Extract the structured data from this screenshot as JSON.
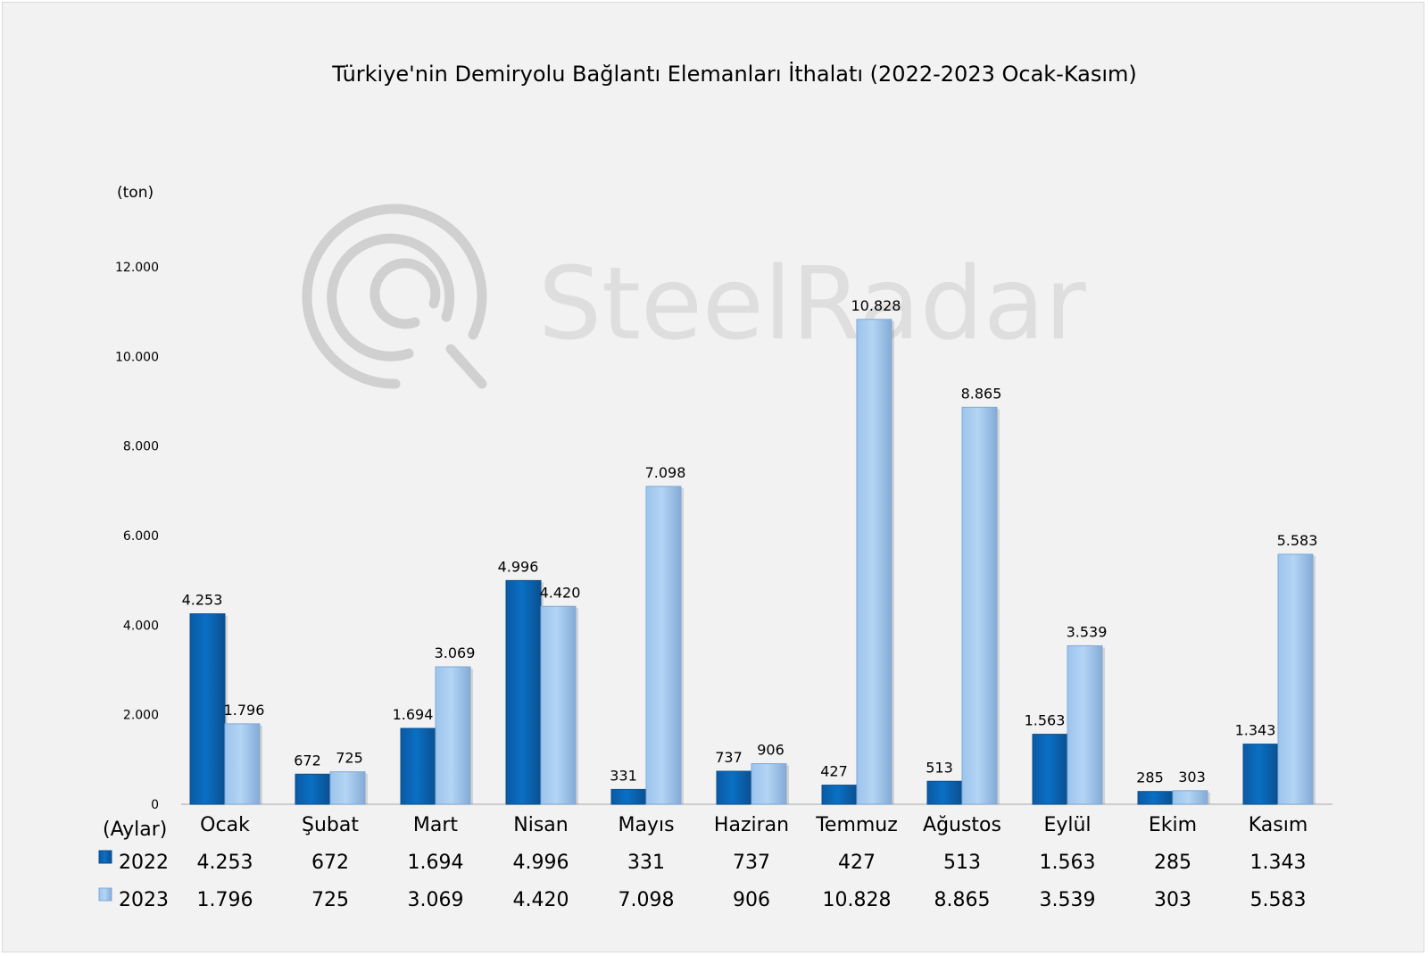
{
  "watermark": {
    "text": "SteelRadar"
  },
  "colors": {
    "series_2022": "#0a6fc2",
    "series_2022_shade": "#0a4f8f",
    "series_2023": "#a9cdf1",
    "series_2023_shade": "#7fa9d6",
    "background": "#f2f2f2",
    "axis": "#bfbfbf"
  },
  "chart_data": {
    "type": "bar",
    "title": "Türkiye'nin Demiryolu Bağlantı Elemanları İthalatı (2022-2023 Ocak-Kasım)",
    "ylabel": "(ton)",
    "xlabel": "(Aylar)",
    "ylim": [
      0,
      12000
    ],
    "yticks": [
      0,
      2000,
      4000,
      6000,
      8000,
      10000,
      12000
    ],
    "ytick_labels": [
      "0",
      "2.000",
      "4.000",
      "6.000",
      "8.000",
      "10.000",
      "12.000"
    ],
    "grid": false,
    "legend": "data-table",
    "categories": [
      "Ocak",
      "Şubat",
      "Mart",
      "Nisan",
      "Mayıs",
      "Haziran",
      "Temmuz",
      "Ağustos",
      "Eylül",
      "Ekim",
      "Kasım"
    ],
    "series": [
      {
        "name": "2022",
        "values": [
          4253,
          672,
          1694,
          4996,
          331,
          737,
          427,
          513,
          1563,
          285,
          1343
        ],
        "labels": [
          "4.253",
          "672",
          "1.694",
          "4.996",
          "331",
          "737",
          "427",
          "513",
          "1.563",
          "285",
          "1.343"
        ]
      },
      {
        "name": "2023",
        "values": [
          1796,
          725,
          3069,
          4420,
          7098,
          906,
          10828,
          8865,
          3539,
          303,
          5583
        ],
        "labels": [
          "1.796",
          "725",
          "3.069",
          "4.420",
          "7.098",
          "906",
          "10.828",
          "8.865",
          "3.539",
          "303",
          "5.583"
        ]
      }
    ]
  }
}
